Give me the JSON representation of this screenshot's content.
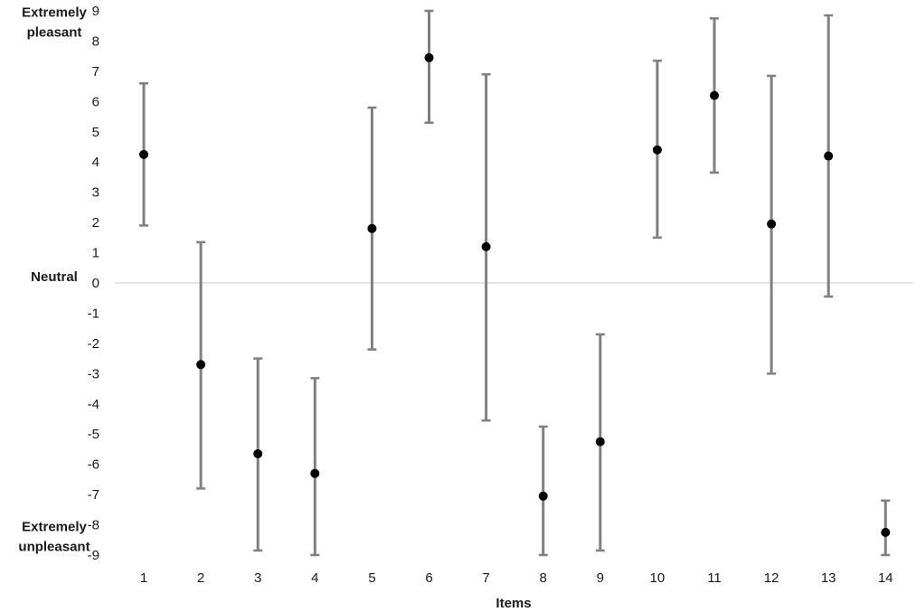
{
  "chart_data": {
    "type": "scatter",
    "subtype": "error-bar",
    "xlabel": "Items",
    "ylabel": "",
    "ylim": [
      -9,
      9
    ],
    "yticks": [
      9,
      8,
      7,
      6,
      5,
      4,
      3,
      2,
      1,
      0,
      -1,
      -2,
      -3,
      -4,
      -5,
      -6,
      -7,
      -8,
      -9
    ],
    "categories": [
      "1",
      "2",
      "3",
      "4",
      "5",
      "6",
      "7",
      "8",
      "9",
      "10",
      "11",
      "12",
      "13",
      "14"
    ],
    "series": [
      {
        "values": [
          4.25,
          -2.7,
          -5.65,
          -6.3,
          1.8,
          7.45,
          1.2,
          -7.05,
          -5.25,
          4.4,
          6.2,
          1.95,
          4.2,
          -8.25
        ],
        "error_low": [
          1.9,
          -6.8,
          -8.85,
          -9.0,
          -2.2,
          5.3,
          -4.55,
          -9.0,
          -8.85,
          1.5,
          3.65,
          -3.0,
          -0.45,
          -9.0
        ],
        "error_high": [
          6.6,
          1.35,
          -2.5,
          -3.15,
          5.8,
          9.0,
          6.9,
          -4.75,
          -1.7,
          7.35,
          8.75,
          6.85,
          8.85,
          -7.2
        ]
      }
    ],
    "anchor_labels": [
      {
        "value": 8.5,
        "text": "Extremely\npleasant"
      },
      {
        "value": 0,
        "text": "Neutral"
      },
      {
        "value": -8.5,
        "text": "Extremely\nunpleasant"
      }
    ],
    "zero_line": true,
    "grid": false,
    "legend": "none",
    "colors": {
      "point": "#000000",
      "error_bar": "#808080",
      "zero_line": "#c8c8c8",
      "text": "#1a1a1a"
    }
  }
}
